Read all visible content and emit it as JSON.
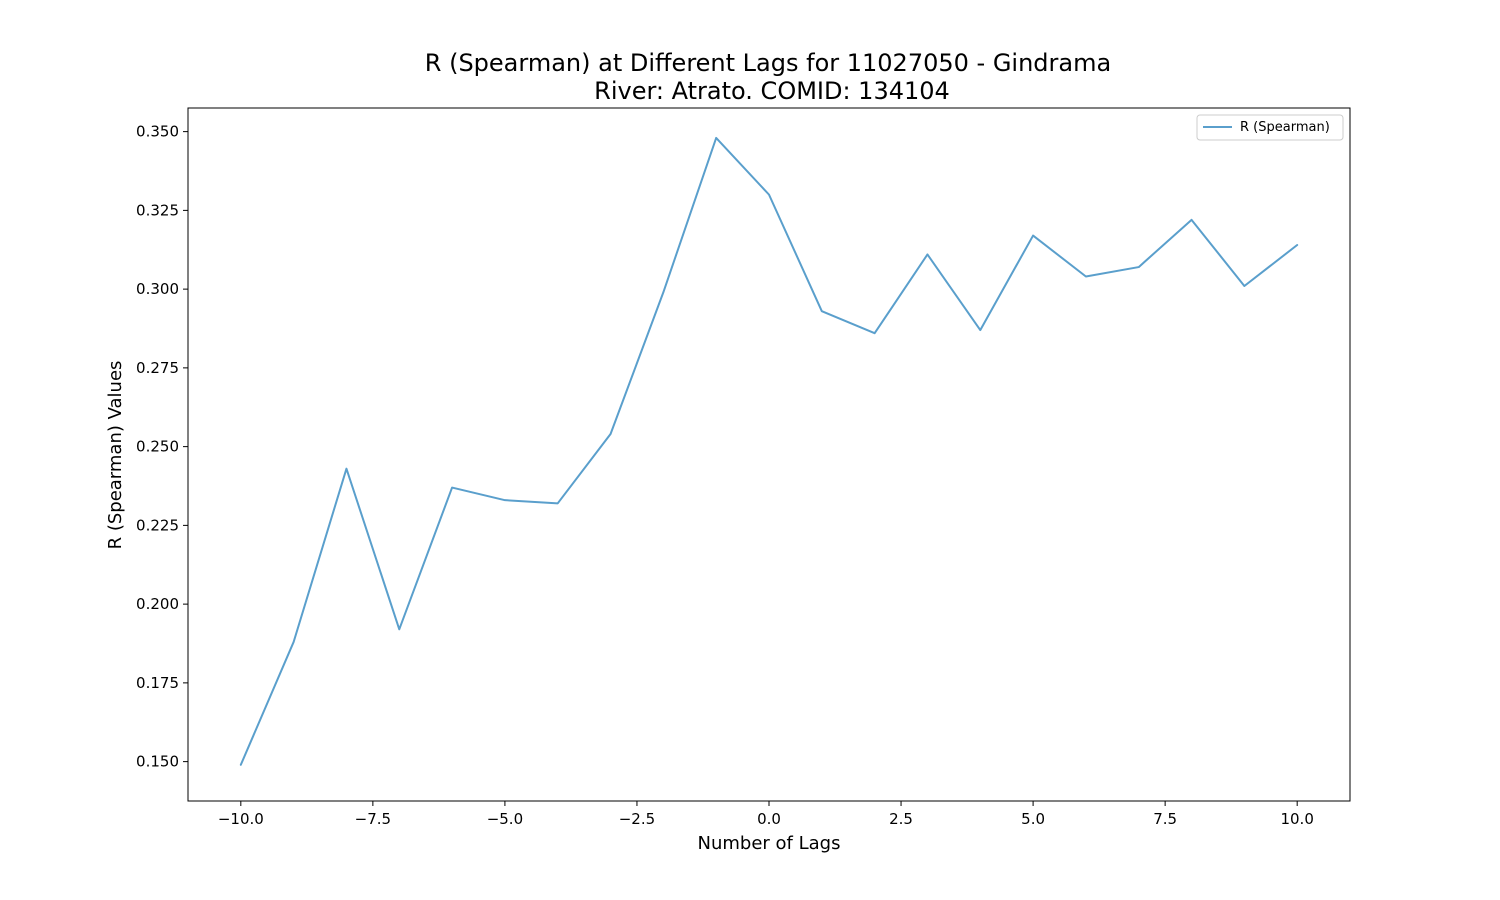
{
  "chart_data": {
    "type": "line",
    "title": "R (Spearman) at Different Lags for 11027050 - Gindrama",
    "subtitle": "River: Atrato. COMID: 134104",
    "xlabel": "Number of Lags",
    "ylabel": "R (Spearman) Values",
    "xlim": [
      -11.0,
      11.0
    ],
    "ylim": [
      0.1375,
      0.3575
    ],
    "x_ticks": [
      -10.0,
      -7.5,
      -5.0,
      -2.5,
      0.0,
      2.5,
      5.0,
      7.5,
      10.0
    ],
    "x_tick_labels": [
      "−10.0",
      "−7.5",
      "−5.0",
      "−2.5",
      "0.0",
      "2.5",
      "5.0",
      "7.5",
      "10.0"
    ],
    "y_ticks": [
      0.15,
      0.175,
      0.2,
      0.225,
      0.25,
      0.275,
      0.3,
      0.325,
      0.35
    ],
    "y_tick_labels": [
      "0.150",
      "0.175",
      "0.200",
      "0.225",
      "0.250",
      "0.275",
      "0.300",
      "0.325",
      "0.350"
    ],
    "grid": false,
    "legend_position": "top-right",
    "x": [
      -10,
      -9,
      -8,
      -7,
      -6,
      -5,
      -4,
      -3,
      -2,
      -1,
      0,
      1,
      2,
      3,
      4,
      5,
      6,
      7,
      8,
      9,
      10
    ],
    "series": [
      {
        "name": "R (Spearman)",
        "color": "#5a9fcc",
        "values": [
          0.149,
          0.188,
          0.243,
          0.192,
          0.237,
          0.233,
          0.232,
          0.254,
          0.299,
          0.348,
          0.33,
          0.293,
          0.286,
          0.311,
          0.287,
          0.317,
          0.304,
          0.307,
          0.322,
          0.301,
          0.314
        ]
      }
    ]
  }
}
